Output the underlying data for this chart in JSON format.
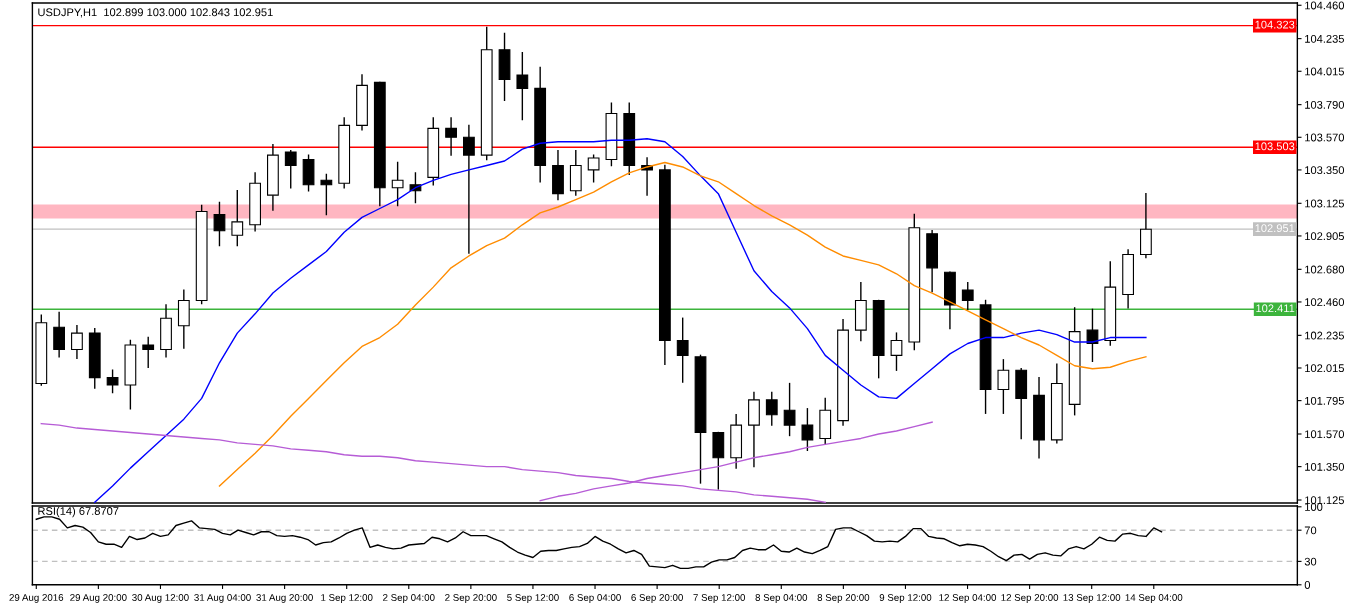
{
  "chart_data": [
    {
      "type": "candlestick",
      "title": "USDJPY,H1  102.899 103.000 102.843 102.951",
      "categories": [
        null,
        null,
        null,
        null,
        null,
        null,
        null,
        null,
        null,
        null,
        null,
        null,
        null,
        null,
        null,
        null,
        null,
        null,
        null,
        null,
        null,
        null,
        null,
        null,
        null,
        null,
        null,
        null,
        null,
        null,
        null,
        null,
        null,
        null,
        null,
        null,
        null,
        null,
        null,
        null,
        null,
        null,
        null,
        null,
        null,
        null,
        null,
        null,
        null,
        null,
        null,
        null,
        null,
        null,
        null,
        null,
        null,
        null,
        null,
        null,
        null,
        null,
        null,
        null,
        null,
        null,
        null,
        null,
        null,
        null,
        null
      ],
      "ohlc": [
        [
          101.91,
          102.37,
          101.9,
          102.32
        ],
        [
          102.29,
          102.39,
          102.09,
          102.14
        ],
        [
          102.14,
          102.3,
          102.08,
          102.25
        ],
        [
          102.25,
          102.28,
          101.88,
          101.95
        ],
        [
          101.95,
          102.0,
          101.85,
          101.9
        ],
        [
          101.9,
          102.2,
          101.74,
          102.17
        ],
        [
          102.17,
          102.22,
          102.02,
          102.14
        ],
        [
          102.14,
          102.44,
          102.09,
          102.35
        ],
        [
          102.3,
          102.54,
          102.15,
          102.47
        ],
        [
          102.47,
          103.11,
          102.45,
          103.07
        ],
        [
          103.05,
          103.13,
          102.84,
          102.94
        ],
        [
          102.91,
          103.21,
          102.84,
          103.0
        ],
        [
          102.98,
          103.33,
          102.94,
          103.26
        ],
        [
          103.18,
          103.52,
          103.08,
          103.45
        ],
        [
          103.47,
          103.48,
          103.23,
          103.38
        ],
        [
          103.42,
          103.45,
          103.21,
          103.25
        ],
        [
          103.28,
          103.32,
          103.05,
          103.25
        ],
        [
          103.26,
          103.7,
          103.23,
          103.65
        ],
        [
          103.65,
          103.99,
          103.62,
          103.92
        ],
        [
          103.94,
          103.94,
          103.11,
          103.23
        ],
        [
          103.23,
          103.4,
          103.11,
          103.28
        ],
        [
          103.25,
          103.33,
          103.13,
          103.21
        ],
        [
          103.3,
          103.7,
          103.25,
          103.63
        ],
        [
          103.63,
          103.7,
          103.45,
          103.57
        ],
        [
          103.57,
          103.65,
          102.79,
          103.45
        ],
        [
          103.45,
          104.31,
          103.42,
          104.16
        ],
        [
          104.16,
          104.27,
          103.82,
          103.96
        ],
        [
          103.99,
          104.14,
          103.69,
          103.9
        ],
        [
          103.9,
          104.04,
          103.27,
          103.38
        ],
        [
          103.38,
          103.48,
          103.15,
          103.19
        ],
        [
          103.21,
          103.48,
          103.18,
          103.38
        ],
        [
          103.35,
          103.45,
          103.27,
          103.43
        ],
        [
          103.42,
          103.8,
          103.38,
          103.73
        ],
        [
          103.73,
          103.8,
          103.32,
          103.38
        ],
        [
          103.38,
          103.43,
          103.18,
          103.35
        ],
        [
          103.35,
          103.38,
          102.04,
          102.2
        ],
        [
          102.2,
          102.35,
          101.92,
          102.1
        ],
        [
          102.09,
          102.1,
          101.24,
          101.58
        ],
        [
          101.58,
          101.58,
          101.2,
          101.41
        ],
        [
          101.41,
          101.7,
          101.34,
          101.63
        ],
        [
          101.63,
          101.85,
          101.35,
          101.8
        ],
        [
          101.8,
          101.85,
          101.63,
          101.7
        ],
        [
          101.73,
          101.91,
          101.56,
          101.63
        ],
        [
          101.63,
          101.74,
          101.46,
          101.53
        ],
        [
          101.54,
          101.81,
          101.5,
          101.73
        ],
        [
          101.66,
          102.34,
          101.63,
          102.27
        ],
        [
          102.27,
          102.59,
          102.2,
          102.47
        ],
        [
          102.47,
          102.47,
          101.95,
          102.1
        ],
        [
          102.1,
          102.25,
          102.0,
          102.2
        ],
        [
          102.19,
          103.05,
          102.14,
          102.96
        ],
        [
          102.92,
          102.94,
          102.53,
          102.69
        ],
        [
          102.66,
          102.66,
          102.28,
          102.44
        ],
        [
          102.54,
          102.59,
          102.41,
          102.47
        ],
        [
          102.44,
          102.47,
          101.71,
          101.87
        ],
        [
          101.87,
          102.07,
          101.71,
          102.0
        ],
        [
          102.0,
          102.01,
          101.54,
          101.81
        ],
        [
          101.83,
          101.95,
          101.41,
          101.53
        ],
        [
          101.53,
          102.04,
          101.51,
          101.91
        ],
        [
          101.77,
          102.42,
          101.7,
          102.26
        ],
        [
          102.27,
          102.41,
          102.06,
          102.18
        ],
        [
          102.2,
          102.73,
          102.17,
          102.56
        ],
        [
          102.51,
          102.81,
          102.42,
          102.78
        ],
        [
          102.78,
          103.19,
          102.76,
          102.95
        ],
        null,
        null,
        null,
        null,
        null,
        null,
        null,
        null
      ],
      "series": [
        {
          "type": "line",
          "color": "#0000ff",
          "values": [
            null,
            null,
            null,
            101.11,
            101.22,
            101.34,
            101.45,
            101.56,
            101.67,
            101.81,
            102.05,
            102.25,
            102.38,
            102.52,
            102.62,
            102.71,
            102.8,
            102.93,
            103.03,
            103.09,
            103.15,
            103.23,
            103.28,
            103.32,
            103.35,
            103.38,
            103.41,
            103.49,
            103.53,
            103.54,
            103.54,
            103.54,
            103.55,
            103.55,
            103.56,
            103.54,
            103.44,
            103.31,
            103.19,
            102.93,
            102.67,
            102.53,
            102.42,
            102.28,
            102.1,
            102.0,
            101.9,
            101.82,
            101.81,
            101.91,
            102.01,
            102.11,
            102.18,
            102.22,
            102.22,
            102.25,
            102.27,
            102.24,
            102.19,
            102.19,
            102.22,
            102.22,
            102.22,
            null,
            null,
            null,
            null,
            null,
            null,
            null,
            null
          ]
        },
        {
          "type": "line",
          "color": "#ff8c00",
          "values": [
            null,
            null,
            null,
            null,
            null,
            null,
            null,
            null,
            null,
            null,
            101.22,
            101.33,
            101.44,
            101.56,
            101.69,
            101.81,
            101.93,
            102.05,
            102.16,
            102.22,
            102.31,
            102.44,
            102.56,
            102.69,
            102.77,
            102.84,
            102.89,
            102.98,
            103.06,
            103.1,
            103.15,
            103.2,
            103.27,
            103.33,
            103.37,
            103.4,
            103.37,
            103.31,
            103.27,
            103.19,
            103.11,
            103.04,
            102.98,
            102.91,
            102.83,
            102.77,
            102.74,
            102.71,
            102.65,
            102.57,
            102.52,
            102.46,
            102.4,
            102.34,
            102.28,
            102.22,
            102.17,
            102.1,
            102.03,
            102.01,
            102.02,
            102.06,
            102.09,
            null,
            null,
            null,
            null,
            null,
            null,
            null,
            null
          ]
        },
        {
          "type": "line",
          "color": "#b65cd6",
          "values": [
            101.64,
            101.63,
            101.61,
            101.6,
            101.59,
            101.58,
            101.57,
            101.56,
            101.55,
            101.54,
            101.53,
            101.51,
            101.5,
            101.49,
            101.47,
            101.46,
            101.45,
            101.43,
            101.42,
            101.42,
            101.41,
            101.39,
            101.38,
            101.37,
            101.36,
            101.35,
            101.35,
            101.33,
            101.32,
            101.31,
            101.29,
            101.28,
            101.27,
            101.25,
            101.24,
            101.23,
            101.22,
            101.2,
            101.19,
            101.18,
            101.16,
            101.15,
            101.14,
            101.13,
            101.11,
            null,
            null,
            null,
            null,
            null,
            null,
            null,
            null,
            null,
            null,
            null,
            null,
            null,
            null,
            null,
            null,
            null,
            null,
            null,
            null,
            null,
            null,
            null,
            null,
            null,
            null
          ]
        },
        {
          "type": "line",
          "color": "#b65cd6",
          "values": [
            null,
            null,
            null,
            null,
            null,
            null,
            null,
            null,
            null,
            null,
            null,
            null,
            null,
            null,
            null,
            null,
            null,
            null,
            null,
            null,
            null,
            null,
            null,
            null,
            null,
            null,
            null,
            null,
            101.12,
            101.15,
            101.17,
            101.2,
            101.22,
            101.24,
            101.27,
            101.29,
            101.31,
            101.33,
            101.35,
            101.38,
            101.41,
            101.43,
            101.45,
            101.48,
            101.5,
            101.52,
            101.54,
            101.57,
            101.59,
            101.62,
            101.65,
            null,
            null,
            null,
            null,
            null,
            null,
            null,
            null,
            null,
            null,
            null,
            null,
            null,
            null,
            null,
            null,
            null,
            null,
            null,
            null
          ]
        }
      ],
      "ref_lines": [
        {
          "axis": "y",
          "value": 104.323,
          "label": "104.323",
          "color": "#ff0000"
        },
        {
          "axis": "y",
          "value": 103.503,
          "label": "103.503",
          "color": "#ff0000"
        },
        {
          "axis": "y",
          "value": 102.951,
          "label": "102.951",
          "color": "#c0c0c0"
        },
        {
          "axis": "y",
          "value": 102.411,
          "label": "102.411",
          "color": "#3cb43c"
        }
      ],
      "bands": [
        {
          "axis": "y",
          "from": 103.023,
          "to": 103.117,
          "color": "#ffb6c1"
        }
      ],
      "ylim": [
        101.105,
        104.475
      ],
      "yticks": [
        {
          "value": 104.46,
          "label": "104.460"
        },
        104.235,
        104.015,
        {
          "value": 103.79,
          "label": "103.790"
        },
        {
          "value": 103.57,
          "label": "103.570"
        },
        {
          "value": 103.35,
          "label": "103.350"
        },
        103.125,
        102.905,
        {
          "value": 102.68,
          "label": "102.680"
        },
        {
          "value": 102.46,
          "label": "102.460"
        },
        102.235,
        102.015,
        101.795,
        {
          "value": 101.57,
          "label": "101.570"
        },
        {
          "value": 101.35,
          "label": "101.350"
        },
        101.125
      ],
      "tick_labels": "y"
    },
    {
      "type": "line",
      "title": "RSI(14) 67.8707",
      "categories": [
        "29 Aug 2016",
        null,
        null,
        null,
        null,
        null,
        null,
        null,
        "29 Aug 20:00",
        null,
        null,
        null,
        null,
        null,
        null,
        null,
        "30 Aug 12:00",
        null,
        null,
        null,
        null,
        null,
        null,
        null,
        "31 Aug 04:00",
        null,
        null,
        null,
        null,
        null,
        null,
        null,
        "31 Aug 20:00",
        null,
        null,
        null,
        null,
        null,
        null,
        null,
        "1 Sep 12:00",
        null,
        null,
        null,
        null,
        null,
        null,
        null,
        "2 Sep 04:00",
        null,
        null,
        null,
        null,
        null,
        null,
        null,
        "2 Sep 20:00",
        null,
        null,
        null,
        null,
        null,
        null,
        null,
        "5 Sep 12:00",
        null,
        null,
        null,
        null,
        null,
        null,
        null,
        "6 Sep 04:00",
        null,
        null,
        null,
        null,
        null,
        null,
        null,
        "6 Sep 20:00",
        null,
        null,
        null,
        null,
        null,
        null,
        null,
        "7 Sep 12:00",
        null,
        null,
        null,
        null,
        null,
        null,
        null,
        "8 Sep 04:00",
        null,
        null,
        null,
        null,
        null,
        null,
        null,
        "8 Sep 20:00",
        null,
        null,
        null,
        null,
        null,
        null,
        null,
        "9 Sep 12:00",
        null,
        null,
        null,
        null,
        null,
        null,
        null,
        "12 Sep 04:00",
        null,
        null,
        null,
        null,
        null,
        null,
        null,
        "12 Sep 20:00",
        null,
        null,
        null,
        null,
        null,
        null,
        null,
        "13 Sep 12:00",
        null,
        null,
        null,
        null,
        null,
        null,
        null,
        "14 Sep 04:00",
        null,
        null,
        null,
        null,
        null,
        null,
        null,
        null,
        null,
        null,
        null,
        null,
        null,
        null,
        null,
        null,
        null,
        null
      ],
      "series": [
        {
          "color": "#000000",
          "values": [
            84,
            87,
            87,
            84,
            73,
            76,
            74,
            67,
            55,
            52,
            52,
            48,
            62,
            58,
            60,
            66,
            62,
            64,
            76,
            79,
            82,
            73,
            72,
            71,
            66,
            64,
            70,
            67,
            64,
            68,
            68,
            63,
            62,
            63,
            61,
            58,
            51,
            54,
            55,
            60,
            66,
            70,
            73,
            48,
            51,
            48,
            46,
            47,
            51,
            52,
            53,
            61,
            59,
            55,
            60,
            68,
            63,
            63,
            63,
            59,
            55,
            48,
            42,
            38,
            35,
            43,
            44,
            44,
            46,
            48,
            49,
            53,
            62,
            56,
            52,
            46,
            41,
            44,
            39,
            24,
            23,
            22,
            25,
            21,
            21,
            23,
            23,
            29,
            32,
            32,
            35,
            44,
            47,
            45,
            45,
            51,
            43,
            42,
            47,
            42,
            40,
            44,
            49,
            71,
            73,
            73,
            68,
            63,
            56,
            55,
            56,
            55,
            62,
            72,
            72,
            62,
            60,
            59,
            54,
            50,
            52,
            51,
            49,
            43,
            36,
            31,
            38,
            39,
            33,
            39,
            41,
            38,
            37,
            46,
            49,
            46,
            52,
            61,
            57,
            56,
            65,
            66,
            63,
            62,
            73,
            68,
            null,
            null,
            null,
            null,
            null,
            null,
            null,
            null,
            null,
            null,
            null,
            null,
            null,
            null,
            null,
            null,
            null
          ]
        }
      ],
      "ref_lines": [
        {
          "axis": "y",
          "value": 70,
          "color": "#c0c0c0",
          "line_style": "dashed"
        },
        {
          "axis": "y",
          "value": 30,
          "color": "#c0c0c0",
          "line_style": "dashed"
        }
      ],
      "ylim": [
        0,
        101
      ],
      "yticks": [
        100,
        70,
        30,
        0
      ]
    }
  ]
}
